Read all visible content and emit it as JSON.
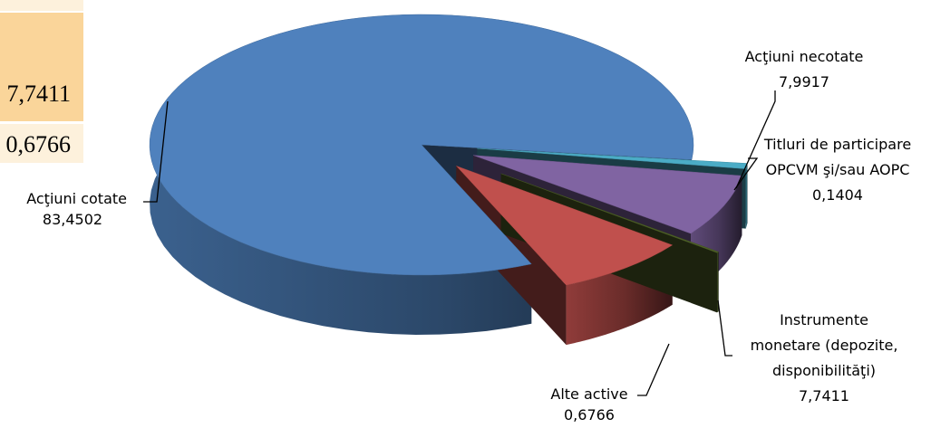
{
  "side_table": {
    "values": [
      "7,7411",
      "0,6766"
    ]
  },
  "chart_data": {
    "type": "pie",
    "title": "",
    "categories": [
      "Acţiuni cotate",
      "Acţiuni necotate",
      "Titluri de participare OPCVM şi/sau AOPC",
      "Instrumente monetare (depozite, disponibilităţi)",
      "Alte active"
    ],
    "values": [
      83.4502,
      7.9917,
      0.1404,
      7.7411,
      0.6766
    ],
    "value_labels": [
      "83,4502",
      "7,9917",
      "0,1404",
      "7,7411",
      "0,6766"
    ],
    "colors": [
      "#4f81bd",
      "#c0504d",
      "#4f6228",
      "#8064a2",
      "#4bacc6"
    ],
    "label_lines": [
      [
        "Acţiuni cotate"
      ],
      [
        "Acţiuni necotate"
      ],
      [
        "Titluri de participare",
        "OPCVM şi/sau AOPC"
      ],
      [
        "Instrumente",
        "monetare (depozite,",
        "disponibilităţi)"
      ],
      [
        "Alte active"
      ]
    ]
  }
}
